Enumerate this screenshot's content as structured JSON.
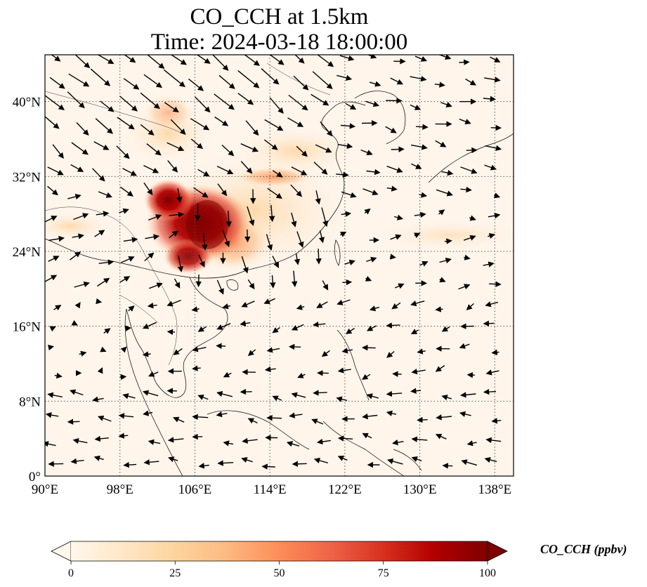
{
  "title": {
    "line1": "CO_CCH at 1.5km",
    "line2": "Time: 2024-03-18 18:00:00"
  },
  "map": {
    "extent": {
      "lon_min": 90,
      "lon_max": 140,
      "lat_min": 0,
      "lat_max": 45
    },
    "gridlines": true,
    "lon_ticks": [
      {
        "value": 90,
        "label": "90°E"
      },
      {
        "value": 98,
        "label": "98°E"
      },
      {
        "value": 106,
        "label": "106°E"
      },
      {
        "value": 114,
        "label": "114°E"
      },
      {
        "value": 122,
        "label": "122°E"
      },
      {
        "value": 130,
        "label": "130°E"
      },
      {
        "value": 138,
        "label": "138°E"
      }
    ],
    "lat_ticks": [
      {
        "value": 0,
        "label": "0°"
      },
      {
        "value": 8,
        "label": "8°N"
      },
      {
        "value": 16,
        "label": "16°N"
      },
      {
        "value": 24,
        "label": "24°N"
      },
      {
        "value": 32,
        "label": "32°N"
      },
      {
        "value": 40,
        "label": "40°N"
      }
    ],
    "field_colors": {
      "low": "#fff5eb",
      "mid": "#fdae6b",
      "high": "#7f0000"
    },
    "plume_hotspots": [
      {
        "lon": 108.0,
        "lat": 26.0,
        "value": 100
      },
      {
        "lon": 104.5,
        "lat": 29.0,
        "value": 95
      },
      {
        "lon": 106.5,
        "lat": 23.5,
        "value": 90
      },
      {
        "lon": 114.5,
        "lat": 31.8,
        "value": 55
      },
      {
        "lon": 103.0,
        "lat": 36.5,
        "value": 35
      },
      {
        "lon": 118.0,
        "lat": 34.5,
        "value": 30
      }
    ]
  },
  "colorbar": {
    "vmin": 0,
    "vmax": 100,
    "ticks": [
      "0",
      "25",
      "50",
      "75",
      "100"
    ],
    "label": "CO_CCH (ppbv)",
    "extend": "both",
    "cmap": "OrRd"
  }
}
